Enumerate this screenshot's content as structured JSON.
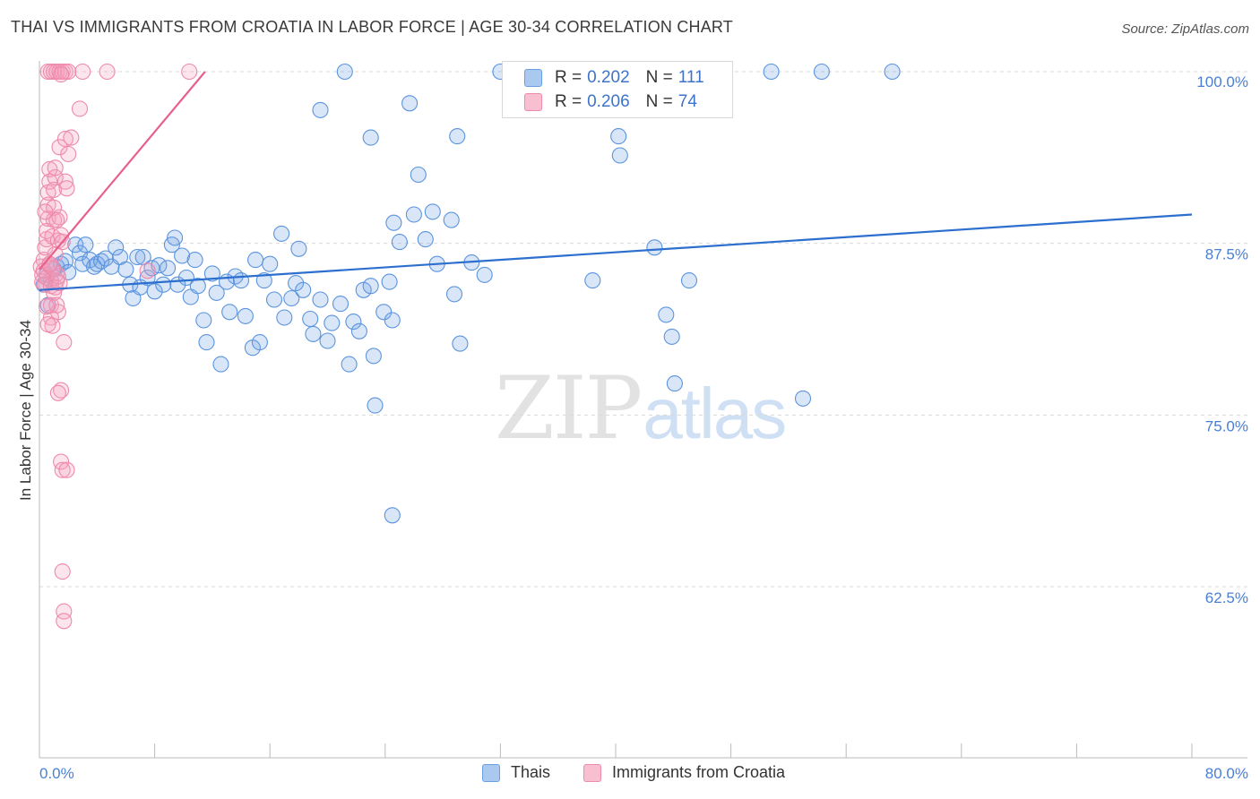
{
  "title": "THAI VS IMMIGRANTS FROM CROATIA IN LABOR FORCE | AGE 30-34 CORRELATION CHART",
  "source": "Source: ZipAtlas.com",
  "watermark": {
    "zip": "ZIP",
    "atlas": "atlas"
  },
  "legend_top": [
    {
      "r_label": "R =",
      "r_value": "0.202",
      "n_label": "N =",
      "n_value": "111",
      "color": "#aac9f0",
      "border": "#6a9fe0"
    },
    {
      "r_label": "R =",
      "r_value": "0.206",
      "n_label": "N =",
      "n_value": "74",
      "color": "#f8bfd0",
      "border": "#ee8aaa"
    }
  ],
  "legend_bottom": [
    {
      "label": "Thais",
      "color": "#aac9f0",
      "border": "#6a9fe0"
    },
    {
      "label": "Immigrants from Croatia",
      "color": "#f8bfd0",
      "border": "#ee8aaa"
    }
  ],
  "colors": {
    "blue": "#5b94de",
    "blue_fill": "rgba(120,165,230,0.28)",
    "blue_line": "#2c6fce",
    "pink": "#ee8aaa",
    "pink_fill": "rgba(245,160,190,0.28)",
    "pink_line": "#e8608a",
    "grid": "#d9d9d9",
    "axis_text": "#4a7fd4"
  },
  "chart_data": {
    "type": "scatter",
    "title": "THAI VS IMMIGRANTS FROM CROATIA IN LABOR FORCE | AGE 30-34 CORRELATION CHART",
    "xlabel": "",
    "ylabel": "In Labor Force | Age 30-34",
    "xlim": [
      0,
      80
    ],
    "ylim": [
      50,
      101
    ],
    "x_tick_labels": [
      "0.0%",
      "80.0%"
    ],
    "y_ticks": [
      62.5,
      75.0,
      87.5,
      100.0
    ],
    "y_tick_labels": [
      "62.5%",
      "75.0%",
      "87.5%",
      "100.0%"
    ],
    "grid": "horizontal dashed",
    "legend_position": "top-center",
    "series": [
      {
        "name": "Thais",
        "trend": {
          "x": [
            0,
            80
          ],
          "y": [
            84.1,
            89.6
          ]
        },
        "points": [
          [
            0.3,
            84.5
          ],
          [
            0.5,
            85.2
          ],
          [
            0.6,
            83.0
          ],
          [
            0.8,
            84.8
          ],
          [
            1.0,
            85.6
          ],
          [
            1.2,
            85.8
          ],
          [
            1.5,
            86.0
          ],
          [
            1.8,
            86.2
          ],
          [
            2.0,
            85.4
          ],
          [
            2.5,
            87.4
          ],
          [
            2.8,
            86.8
          ],
          [
            3.0,
            86.0
          ],
          [
            3.2,
            87.4
          ],
          [
            3.5,
            86.3
          ],
          [
            3.8,
            85.8
          ],
          [
            4.0,
            86.0
          ],
          [
            4.3,
            86.2
          ],
          [
            4.6,
            86.4
          ],
          [
            5.0,
            85.8
          ],
          [
            5.3,
            87.2
          ],
          [
            5.6,
            86.5
          ],
          [
            6.0,
            85.6
          ],
          [
            6.3,
            84.5
          ],
          [
            6.5,
            83.5
          ],
          [
            6.8,
            86.5
          ],
          [
            7.0,
            84.3
          ],
          [
            7.2,
            86.5
          ],
          [
            7.5,
            85.0
          ],
          [
            7.8,
            85.7
          ],
          [
            8.0,
            84.0
          ],
          [
            8.3,
            85.9
          ],
          [
            8.6,
            84.5
          ],
          [
            8.9,
            85.7
          ],
          [
            9.2,
            87.4
          ],
          [
            9.4,
            87.9
          ],
          [
            9.6,
            84.5
          ],
          [
            9.9,
            86.6
          ],
          [
            10.2,
            85.0
          ],
          [
            10.5,
            83.6
          ],
          [
            10.8,
            86.3
          ],
          [
            11.0,
            84.4
          ],
          [
            11.4,
            81.9
          ],
          [
            11.6,
            80.3
          ],
          [
            12.0,
            85.3
          ],
          [
            12.3,
            83.9
          ],
          [
            12.6,
            78.7
          ],
          [
            13.0,
            84.7
          ],
          [
            13.2,
            82.5
          ],
          [
            13.6,
            85.1
          ],
          [
            14.0,
            84.8
          ],
          [
            14.3,
            82.2
          ],
          [
            14.8,
            79.9
          ],
          [
            15.0,
            86.3
          ],
          [
            15.3,
            80.3
          ],
          [
            15.6,
            84.8
          ],
          [
            16.0,
            86.0
          ],
          [
            16.3,
            83.4
          ],
          [
            16.8,
            88.2
          ],
          [
            17.0,
            82.1
          ],
          [
            17.5,
            83.5
          ],
          [
            17.8,
            84.6
          ],
          [
            18.0,
            87.1
          ],
          [
            18.3,
            84.1
          ],
          [
            18.8,
            82.0
          ],
          [
            19.0,
            80.9
          ],
          [
            19.5,
            83.4
          ],
          [
            20.0,
            80.4
          ],
          [
            20.3,
            81.7
          ],
          [
            20.9,
            83.1
          ],
          [
            21.2,
            100.0
          ],
          [
            21.5,
            78.7
          ],
          [
            21.8,
            81.8
          ],
          [
            22.2,
            81.1
          ],
          [
            22.5,
            84.1
          ],
          [
            23.0,
            84.4
          ],
          [
            23.2,
            79.3
          ],
          [
            23.3,
            75.7
          ],
          [
            23.9,
            82.5
          ],
          [
            24.3,
            84.7
          ],
          [
            24.5,
            81.9
          ],
          [
            24.6,
            89.0
          ],
          [
            25.0,
            87.6
          ],
          [
            25.7,
            97.7
          ],
          [
            26.0,
            89.6
          ],
          [
            26.3,
            92.5
          ],
          [
            26.8,
            87.8
          ],
          [
            27.3,
            89.8
          ],
          [
            27.6,
            86.0
          ],
          [
            28.6,
            89.2
          ],
          [
            28.8,
            83.8
          ],
          [
            29.0,
            95.3
          ],
          [
            29.2,
            80.2
          ],
          [
            30.0,
            86.1
          ],
          [
            30.9,
            85.2
          ],
          [
            38.2,
            100.0
          ],
          [
            40.2,
            95.3
          ],
          [
            42.7,
            87.2
          ],
          [
            43.5,
            82.3
          ],
          [
            43.9,
            80.7
          ],
          [
            44.1,
            77.3
          ],
          [
            50.8,
            100.0
          ],
          [
            54.3,
            100.0
          ],
          [
            59.2,
            100.0
          ],
          [
            45.1,
            84.8
          ],
          [
            53.0,
            76.2
          ],
          [
            40.3,
            93.9
          ],
          [
            23.0,
            95.2
          ],
          [
            19.5,
            97.2
          ],
          [
            24.5,
            67.7
          ],
          [
            38.4,
            84.8
          ],
          [
            32.0,
            100.0
          ]
        ]
      },
      {
        "name": "Immigrants from Croatia",
        "trend": {
          "x": [
            0,
            11.5
          ],
          "y": [
            85.6,
            100.0
          ]
        },
        "points": [
          [
            0.1,
            85.8
          ],
          [
            0.2,
            85.2
          ],
          [
            0.2,
            84.7
          ],
          [
            0.3,
            86.3
          ],
          [
            0.3,
            85.5
          ],
          [
            0.4,
            84.5
          ],
          [
            0.4,
            87.2
          ],
          [
            0.5,
            87.8
          ],
          [
            0.5,
            85.0
          ],
          [
            0.5,
            88.4
          ],
          [
            0.6,
            89.3
          ],
          [
            0.6,
            90.3
          ],
          [
            0.6,
            91.2
          ],
          [
            0.7,
            92.0
          ],
          [
            0.7,
            92.9
          ],
          [
            0.7,
            85.9
          ],
          [
            0.8,
            84.4
          ],
          [
            0.8,
            83.0
          ],
          [
            0.8,
            82.1
          ],
          [
            0.9,
            81.5
          ],
          [
            0.9,
            88.0
          ],
          [
            1.0,
            89.2
          ],
          [
            1.0,
            90.1
          ],
          [
            1.0,
            91.4
          ],
          [
            1.1,
            92.3
          ],
          [
            1.1,
            93.0
          ],
          [
            1.1,
            86.7
          ],
          [
            1.2,
            85.3
          ],
          [
            1.2,
            84.8
          ],
          [
            1.3,
            82.5
          ],
          [
            1.3,
            87.7
          ],
          [
            1.4,
            94.5
          ],
          [
            1.4,
            89.4
          ],
          [
            1.5,
            76.8
          ],
          [
            1.5,
            71.6
          ],
          [
            1.6,
            71.0
          ],
          [
            1.6,
            63.6
          ],
          [
            1.7,
            60.7
          ],
          [
            1.7,
            60.0
          ],
          [
            1.8,
            95.1
          ],
          [
            1.8,
            92.0
          ],
          [
            1.9,
            91.5
          ],
          [
            2.0,
            94.0
          ],
          [
            2.2,
            95.2
          ],
          [
            0.6,
            100.0
          ],
          [
            0.8,
            100.0
          ],
          [
            1.0,
            100.0
          ],
          [
            1.2,
            100.0
          ],
          [
            1.4,
            100.0
          ],
          [
            1.6,
            100.0
          ],
          [
            1.8,
            100.0
          ],
          [
            2.0,
            100.0
          ],
          [
            1.5,
            99.8
          ],
          [
            1.7,
            80.3
          ],
          [
            1.3,
            76.6
          ],
          [
            1.9,
            71.0
          ],
          [
            2.8,
            97.3
          ],
          [
            3.0,
            100.0
          ],
          [
            4.7,
            100.0
          ],
          [
            10.4,
            100.0
          ],
          [
            1.0,
            83.9
          ],
          [
            1.2,
            83.0
          ],
          [
            0.9,
            85.7
          ],
          [
            1.1,
            84.3
          ],
          [
            0.7,
            86.0
          ],
          [
            1.4,
            84.6
          ],
          [
            1.3,
            85.1
          ],
          [
            0.5,
            82.9
          ],
          [
            0.6,
            81.6
          ],
          [
            1.5,
            88.1
          ],
          [
            1.6,
            87.6
          ],
          [
            7.5,
            85.5
          ],
          [
            1.2,
            89.2
          ],
          [
            0.4,
            89.8
          ]
        ]
      }
    ]
  }
}
